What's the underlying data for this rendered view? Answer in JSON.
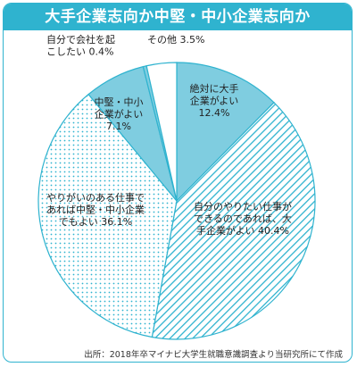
{
  "title": "大手企業志向か中堅・中小企業志向か",
  "source": "出所：2018年卒マイナビ大学生就職意識調査より当研究所にて作成",
  "colors": {
    "accent": "#2fb3cf",
    "solid": "#7fcde0",
    "stripe": "#2fb3cf",
    "dot": "#2fb3cf"
  },
  "chart_data": {
    "type": "pie",
    "slices": [
      {
        "label_lines": [
          "絶対に大手",
          "企業がよい",
          "12.4%"
        ],
        "value": 12.4,
        "pattern": "solid"
      },
      {
        "label_lines": [
          "自分のやりたい仕事が",
          "できるのであれば、大",
          "手企業がよい 40.4%"
        ],
        "value": 40.4,
        "pattern": "diagonal"
      },
      {
        "label_lines": [
          "やりがいのある仕事で",
          "あれば中堅・中小企業",
          "でもよい 36.1%"
        ],
        "value": 36.1,
        "pattern": "dots"
      },
      {
        "label_lines": [
          "中堅・中小",
          "企業がよい",
          "7.1%"
        ],
        "value": 7.1,
        "pattern": "solid"
      },
      {
        "label_lines": [
          "自分で会社を起",
          "こしたい 0.4%"
        ],
        "value": 0.4,
        "pattern": "solid"
      },
      {
        "label_lines": [
          "その他 3.5%"
        ],
        "value": 3.5,
        "pattern": "none"
      }
    ]
  }
}
